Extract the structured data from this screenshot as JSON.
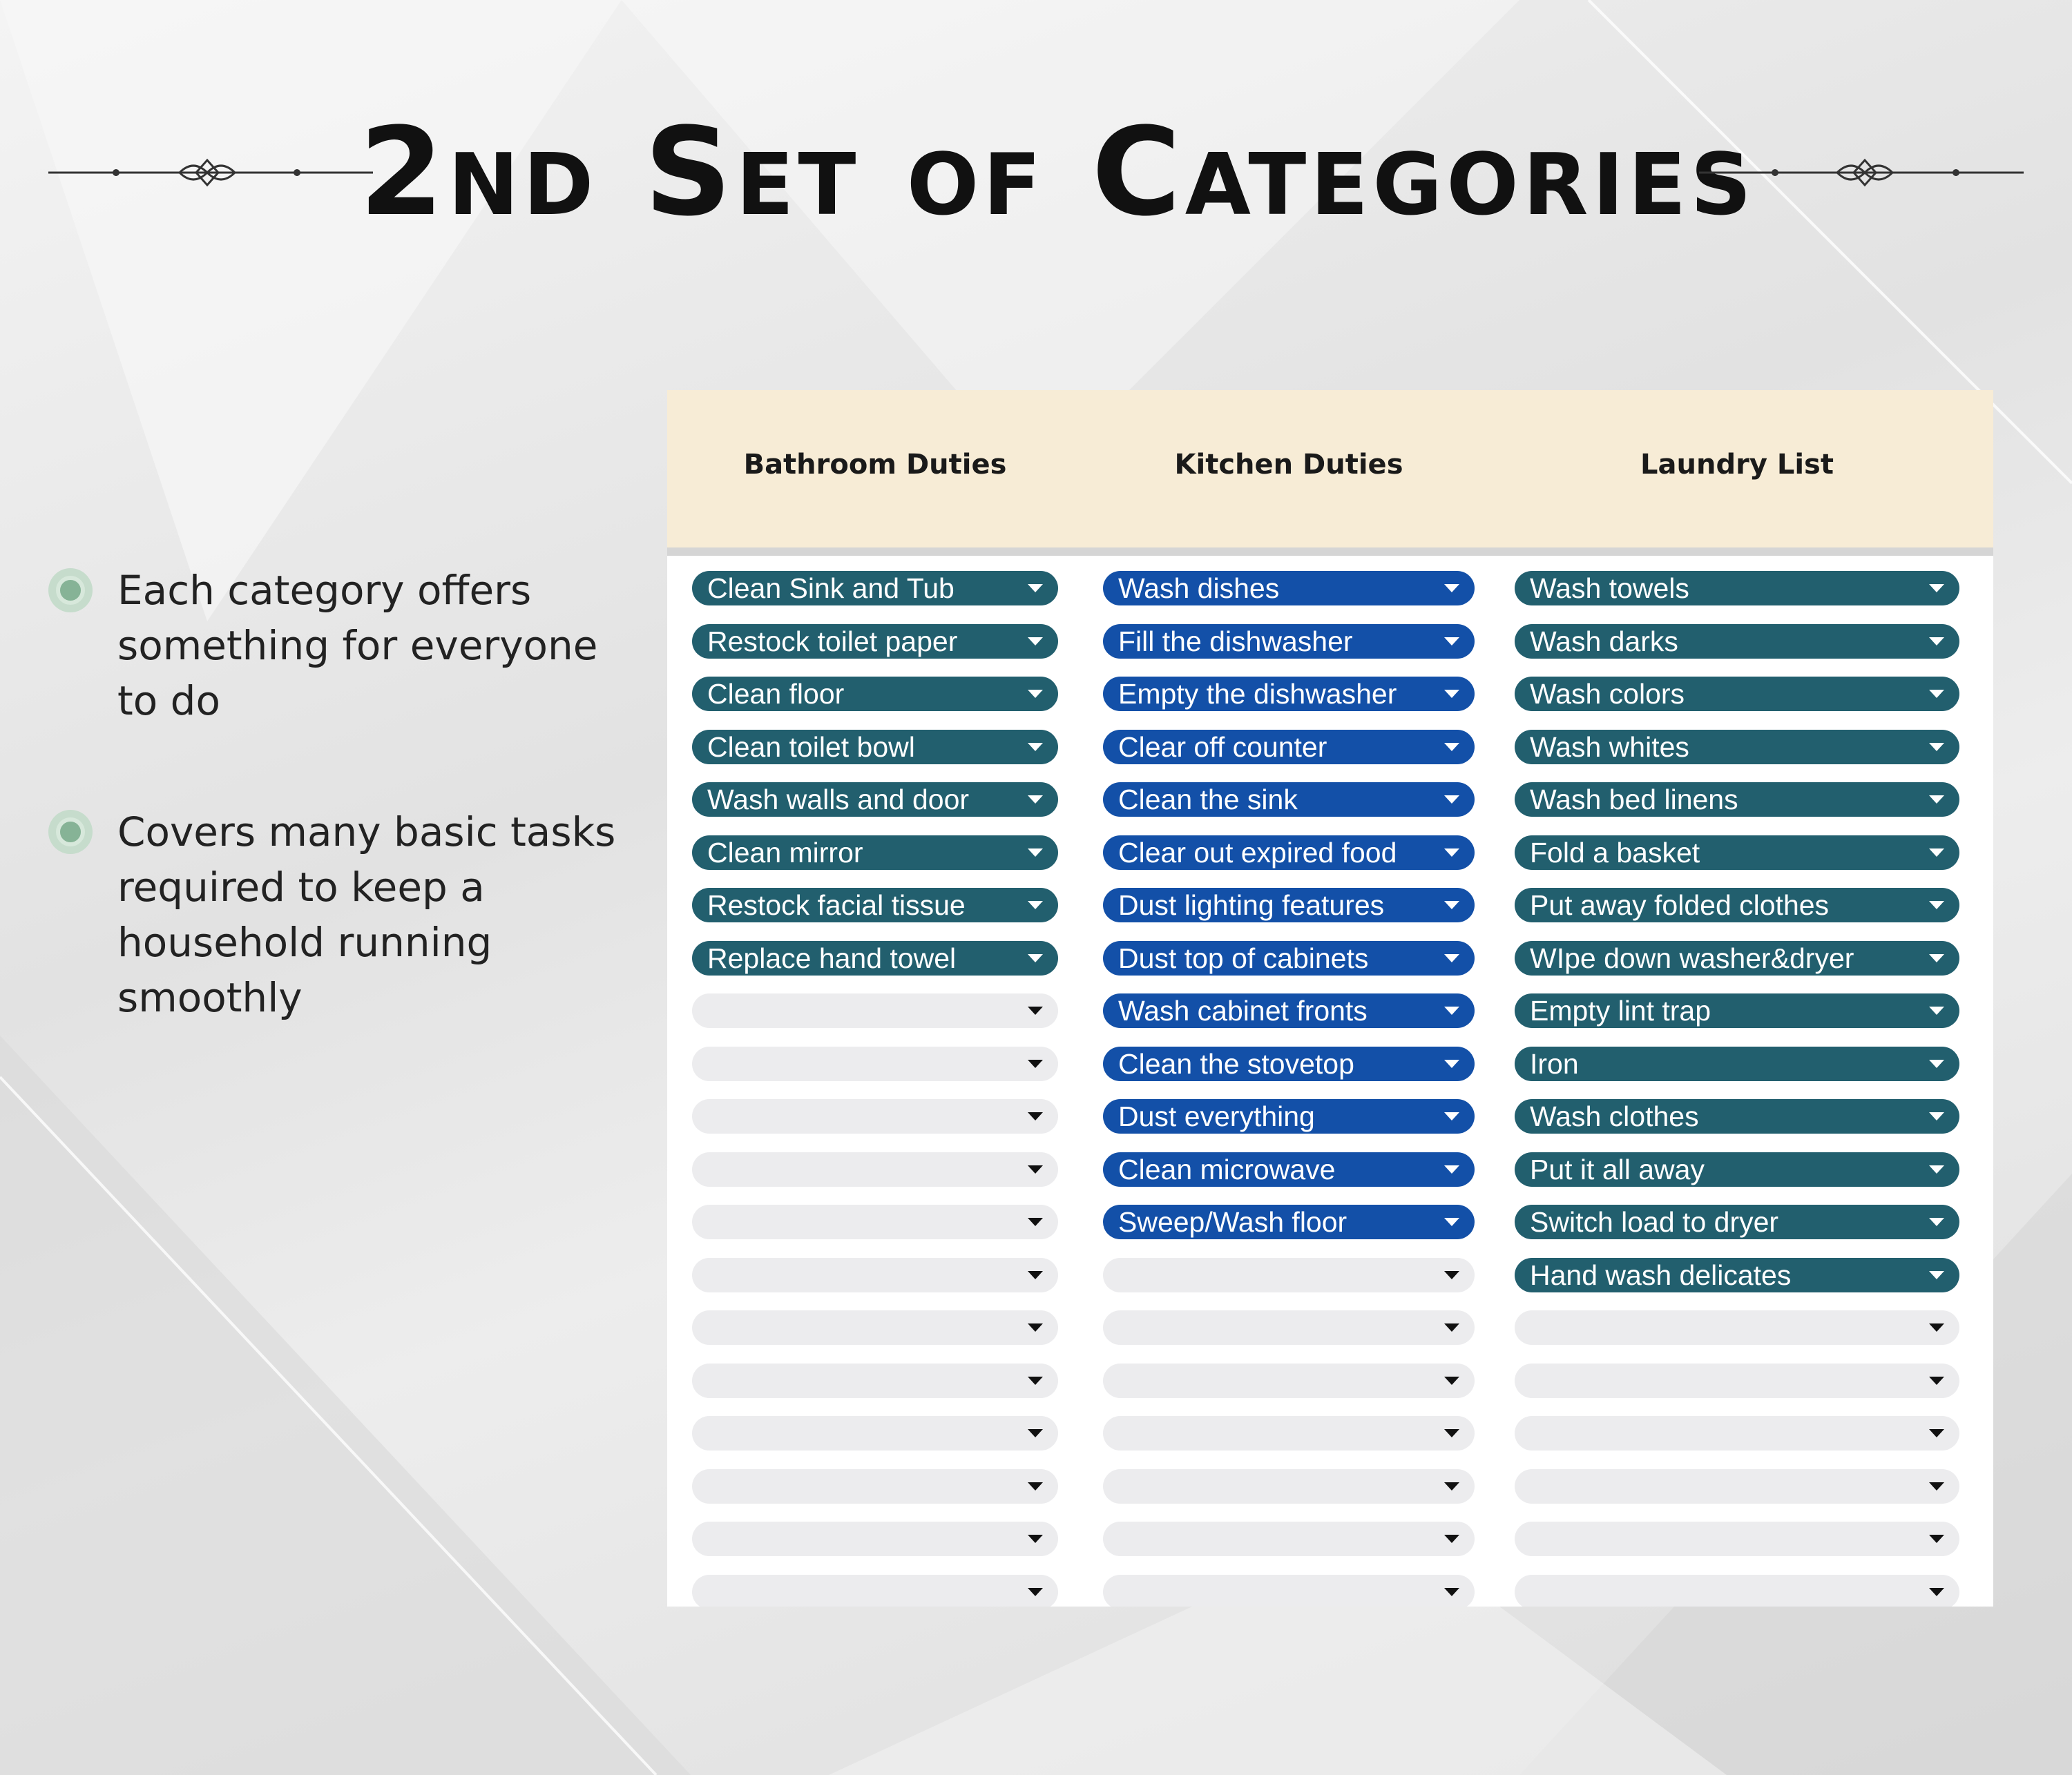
{
  "title": "2nd Set of Categories",
  "bullets": [
    "Each category offers something for everyone to do",
    "Covers many basic tasks required to keep a household running smoothly"
  ],
  "sheet": {
    "headers": [
      "Bathroom Duties",
      "Kitchen Duties",
      "Laundry List"
    ],
    "bathroom": [
      "Clean Sink and Tub",
      "Restock toilet paper",
      "Clean floor",
      "Clean toilet bowl",
      "Wash walls and door",
      "Clean mirror",
      "Restock facial tissue",
      "Replace hand towel",
      "",
      "",
      "",
      "",
      "",
      "",
      "",
      "",
      "",
      "",
      "",
      ""
    ],
    "kitchen": [
      "Wash dishes",
      "Fill the dishwasher",
      "Empty the dishwasher",
      "Clear off counter",
      "Clean the sink",
      "Clear out expired food",
      "Dust lighting features",
      "Dust top of cabinets",
      "Wash cabinet fronts",
      "Clean the stovetop",
      "Dust everything",
      "Clean microwave",
      "Sweep/Wash floor",
      "",
      "",
      "",
      "",
      "",
      "",
      ""
    ],
    "laundry": [
      "Wash towels",
      "Wash darks",
      "Wash colors",
      "Wash whites",
      "Wash bed linens",
      "Fold a basket",
      "Put away folded clothes",
      "WIpe down washer&dryer",
      "Empty lint trap",
      "Iron",
      "Wash clothes",
      "Put it all away",
      "Switch load to dryer",
      "Hand wash delicates",
      "",
      "",
      "",
      "",
      "",
      ""
    ]
  },
  "colors": {
    "bathroom_chip": "#225f6e",
    "kitchen_chip": "#1350a8",
    "laundry_chip": "#225f6e",
    "empty_chip": "#ececee",
    "header_bg": "#f7ecd6",
    "bullet_icon": "#86b396"
  },
  "icons": {
    "bullet": "radio-dot-icon",
    "dropdown": "caret-down-icon",
    "flourish": "ornament-divider-icon"
  }
}
